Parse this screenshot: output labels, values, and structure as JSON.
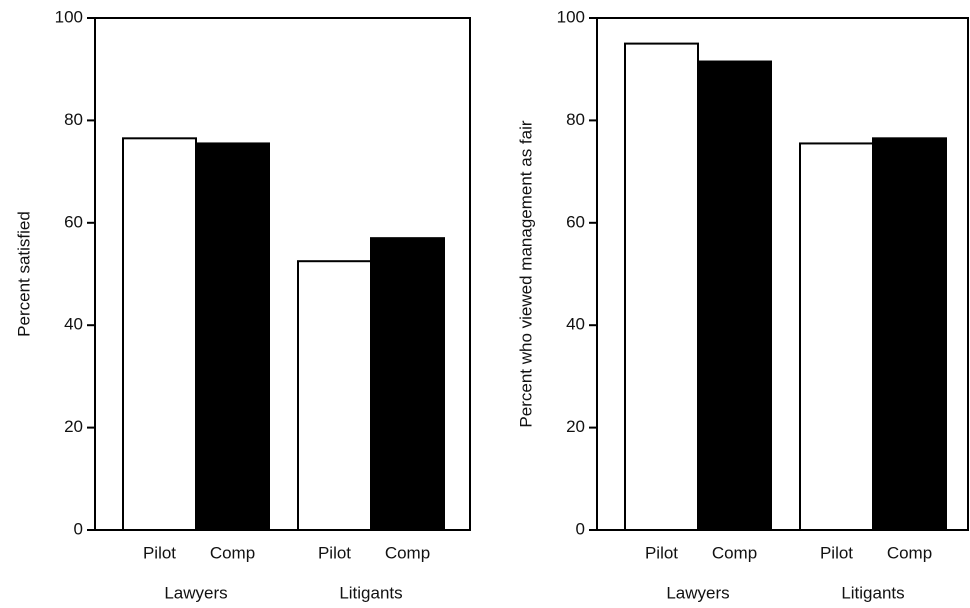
{
  "chart_data": [
    {
      "type": "bar",
      "ylabel": "Percent satisfied",
      "groups": [
        "Lawyers",
        "Litigants"
      ],
      "series": [
        {
          "name": "Pilot",
          "color": "#ffffff",
          "values": [
            76.5,
            52.5
          ]
        },
        {
          "name": "Comp",
          "color": "#000000",
          "values": [
            75.5,
            57
          ]
        }
      ],
      "ylim": [
        0,
        100
      ],
      "yticks": [
        0,
        20,
        40,
        60,
        80,
        100
      ]
    },
    {
      "type": "bar",
      "ylabel": "Percent who viewed management as fair",
      "groups": [
        "Lawyers",
        "Litigants"
      ],
      "series": [
        {
          "name": "Pilot",
          "color": "#ffffff",
          "values": [
            95,
            75.5
          ]
        },
        {
          "name": "Comp",
          "color": "#000000",
          "values": [
            91.5,
            76.5
          ]
        }
      ],
      "ylim": [
        0,
        100
      ],
      "yticks": [
        0,
        20,
        40,
        60,
        80,
        100
      ]
    }
  ]
}
